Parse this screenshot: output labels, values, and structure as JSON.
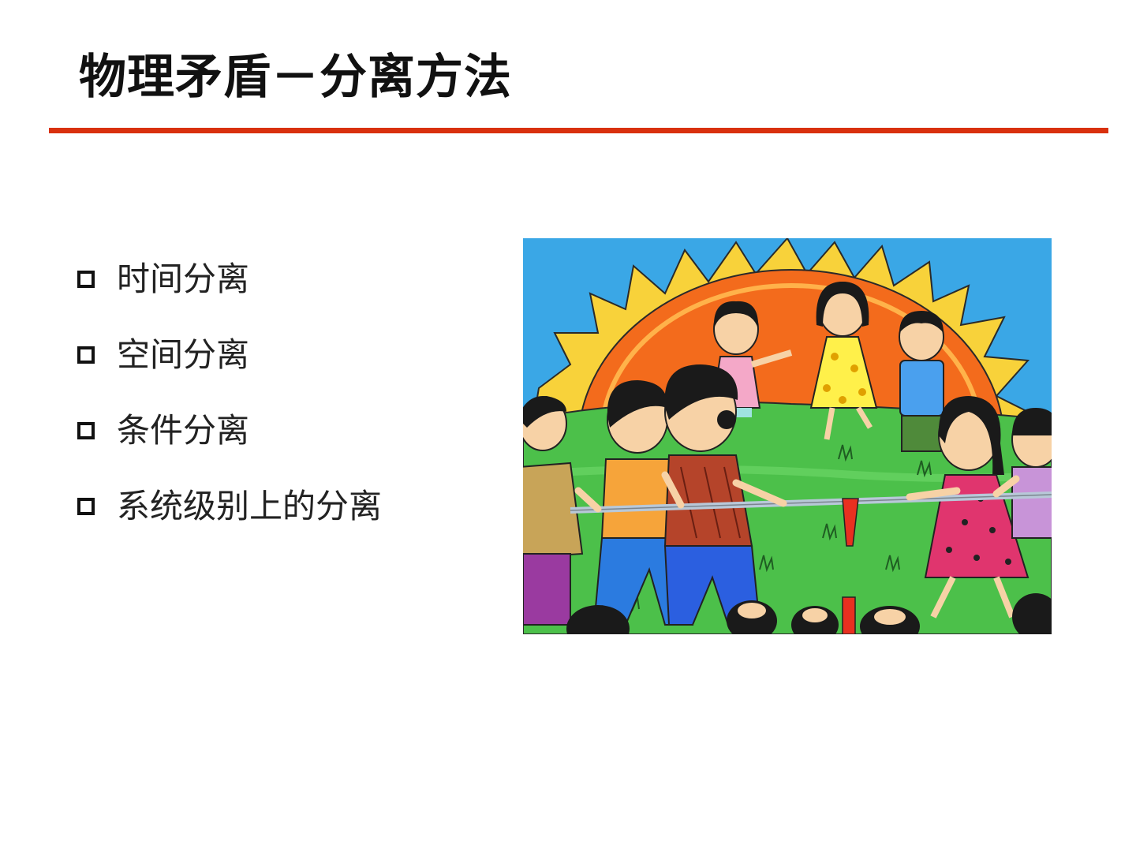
{
  "slide": {
    "title": "物理矛盾－分离方法",
    "bullets": [
      "时间分离",
      "空间分离",
      "条件分离",
      "系统级别上的分离"
    ]
  },
  "illustration": {
    "subject": "children-tug-of-war-drawing"
  },
  "colors": {
    "title_rule": "#d9310e",
    "sky": "#3aa7e6",
    "sun": "#f36b1c",
    "grass": "#4cc04a"
  }
}
